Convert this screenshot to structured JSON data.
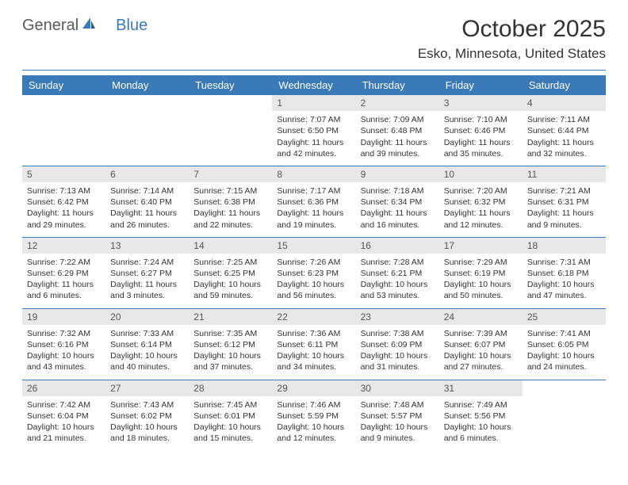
{
  "brand": {
    "part1": "General",
    "part2": "Blue"
  },
  "title": "October 2025",
  "location": "Esko, Minnesota, United States",
  "colors": {
    "accent": "#3a7ab8",
    "header_bg": "#3a7ab8",
    "header_text": "#ffffff",
    "daynum_bg": "#e8e8e8",
    "text": "#333333",
    "background": "#ffffff"
  },
  "weekdays": [
    "Sunday",
    "Monday",
    "Tuesday",
    "Wednesday",
    "Thursday",
    "Friday",
    "Saturday"
  ],
  "weeks": [
    [
      null,
      null,
      null,
      {
        "n": "1",
        "sr": "7:07 AM",
        "ss": "6:50 PM",
        "dl": "11 hours and 42 minutes."
      },
      {
        "n": "2",
        "sr": "7:09 AM",
        "ss": "6:48 PM",
        "dl": "11 hours and 39 minutes."
      },
      {
        "n": "3",
        "sr": "7:10 AM",
        "ss": "6:46 PM",
        "dl": "11 hours and 35 minutes."
      },
      {
        "n": "4",
        "sr": "7:11 AM",
        "ss": "6:44 PM",
        "dl": "11 hours and 32 minutes."
      }
    ],
    [
      {
        "n": "5",
        "sr": "7:13 AM",
        "ss": "6:42 PM",
        "dl": "11 hours and 29 minutes."
      },
      {
        "n": "6",
        "sr": "7:14 AM",
        "ss": "6:40 PM",
        "dl": "11 hours and 26 minutes."
      },
      {
        "n": "7",
        "sr": "7:15 AM",
        "ss": "6:38 PM",
        "dl": "11 hours and 22 minutes."
      },
      {
        "n": "8",
        "sr": "7:17 AM",
        "ss": "6:36 PM",
        "dl": "11 hours and 19 minutes."
      },
      {
        "n": "9",
        "sr": "7:18 AM",
        "ss": "6:34 PM",
        "dl": "11 hours and 16 minutes."
      },
      {
        "n": "10",
        "sr": "7:20 AM",
        "ss": "6:32 PM",
        "dl": "11 hours and 12 minutes."
      },
      {
        "n": "11",
        "sr": "7:21 AM",
        "ss": "6:31 PM",
        "dl": "11 hours and 9 minutes."
      }
    ],
    [
      {
        "n": "12",
        "sr": "7:22 AM",
        "ss": "6:29 PM",
        "dl": "11 hours and 6 minutes."
      },
      {
        "n": "13",
        "sr": "7:24 AM",
        "ss": "6:27 PM",
        "dl": "11 hours and 3 minutes."
      },
      {
        "n": "14",
        "sr": "7:25 AM",
        "ss": "6:25 PM",
        "dl": "10 hours and 59 minutes."
      },
      {
        "n": "15",
        "sr": "7:26 AM",
        "ss": "6:23 PM",
        "dl": "10 hours and 56 minutes."
      },
      {
        "n": "16",
        "sr": "7:28 AM",
        "ss": "6:21 PM",
        "dl": "10 hours and 53 minutes."
      },
      {
        "n": "17",
        "sr": "7:29 AM",
        "ss": "6:19 PM",
        "dl": "10 hours and 50 minutes."
      },
      {
        "n": "18",
        "sr": "7:31 AM",
        "ss": "6:18 PM",
        "dl": "10 hours and 47 minutes."
      }
    ],
    [
      {
        "n": "19",
        "sr": "7:32 AM",
        "ss": "6:16 PM",
        "dl": "10 hours and 43 minutes."
      },
      {
        "n": "20",
        "sr": "7:33 AM",
        "ss": "6:14 PM",
        "dl": "10 hours and 40 minutes."
      },
      {
        "n": "21",
        "sr": "7:35 AM",
        "ss": "6:12 PM",
        "dl": "10 hours and 37 minutes."
      },
      {
        "n": "22",
        "sr": "7:36 AM",
        "ss": "6:11 PM",
        "dl": "10 hours and 34 minutes."
      },
      {
        "n": "23",
        "sr": "7:38 AM",
        "ss": "6:09 PM",
        "dl": "10 hours and 31 minutes."
      },
      {
        "n": "24",
        "sr": "7:39 AM",
        "ss": "6:07 PM",
        "dl": "10 hours and 27 minutes."
      },
      {
        "n": "25",
        "sr": "7:41 AM",
        "ss": "6:05 PM",
        "dl": "10 hours and 24 minutes."
      }
    ],
    [
      {
        "n": "26",
        "sr": "7:42 AM",
        "ss": "6:04 PM",
        "dl": "10 hours and 21 minutes."
      },
      {
        "n": "27",
        "sr": "7:43 AM",
        "ss": "6:02 PM",
        "dl": "10 hours and 18 minutes."
      },
      {
        "n": "28",
        "sr": "7:45 AM",
        "ss": "6:01 PM",
        "dl": "10 hours and 15 minutes."
      },
      {
        "n": "29",
        "sr": "7:46 AM",
        "ss": "5:59 PM",
        "dl": "10 hours and 12 minutes."
      },
      {
        "n": "30",
        "sr": "7:48 AM",
        "ss": "5:57 PM",
        "dl": "10 hours and 9 minutes."
      },
      {
        "n": "31",
        "sr": "7:49 AM",
        "ss": "5:56 PM",
        "dl": "10 hours and 6 minutes."
      },
      null
    ]
  ],
  "labels": {
    "sunrise": "Sunrise:",
    "sunset": "Sunset:",
    "daylight": "Daylight:"
  }
}
